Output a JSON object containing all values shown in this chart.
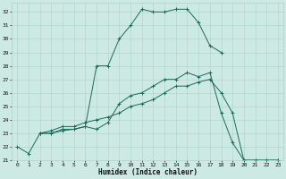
{
  "xlabel": "Humidex (Indice chaleur)",
  "background_color": "#cce9e4",
  "grid_color": "#aad4cc",
  "line_color": "#1a6b5a",
  "xlim": [
    -0.5,
    23.5
  ],
  "ylim": [
    21,
    32.7
  ],
  "yticks": [
    21,
    22,
    23,
    24,
    25,
    26,
    27,
    28,
    29,
    30,
    31,
    32
  ],
  "xticks": [
    0,
    1,
    2,
    3,
    4,
    5,
    6,
    7,
    8,
    9,
    10,
    11,
    12,
    13,
    14,
    15,
    16,
    17,
    18,
    19,
    20,
    21,
    22,
    23
  ],
  "lines": [
    {
      "x": [
        0,
        1,
        2,
        3,
        4,
        5,
        6,
        7,
        8,
        9,
        10,
        11,
        12,
        13,
        14,
        15,
        16,
        17,
        18
      ],
      "y": [
        22,
        21.5,
        23,
        23,
        23.2,
        23.3,
        23.5,
        28.0,
        28.0,
        30.0,
        31.0,
        32.2,
        32.0,
        32.0,
        32.2,
        32.2,
        31.2,
        29.5,
        29.0
      ]
    },
    {
      "x": [
        2,
        3,
        4,
        5,
        6,
        7,
        8,
        9,
        10,
        11,
        12,
        13,
        14,
        15,
        16,
        17,
        18,
        19,
        20,
        21,
        22,
        23
      ],
      "y": [
        23,
        23,
        23.3,
        23.3,
        23.5,
        23.3,
        23.8,
        25.2,
        25.8,
        26.0,
        26.5,
        27.0,
        27.0,
        27.5,
        27.2,
        27.5,
        24.5,
        22.3,
        21.0,
        21.0,
        21.0,
        21.0
      ]
    },
    {
      "x": [
        2,
        3,
        4,
        5,
        6,
        7,
        8,
        9,
        10,
        11,
        12,
        13,
        14,
        15,
        16,
        17,
        18,
        19,
        20,
        21,
        22,
        23
      ],
      "y": [
        23,
        23.2,
        23.5,
        23.5,
        23.8,
        24.0,
        24.2,
        24.5,
        25.0,
        25.2,
        25.5,
        26.0,
        26.5,
        26.5,
        26.8,
        27.0,
        26.0,
        24.5,
        21.0,
        21.0,
        21.0,
        21.0
      ]
    }
  ],
  "tick_labelsize": 4.5,
  "xlabel_fontsize": 5.5,
  "linewidth": 0.7,
  "markersize": 2.5,
  "markeredgewidth": 0.7
}
